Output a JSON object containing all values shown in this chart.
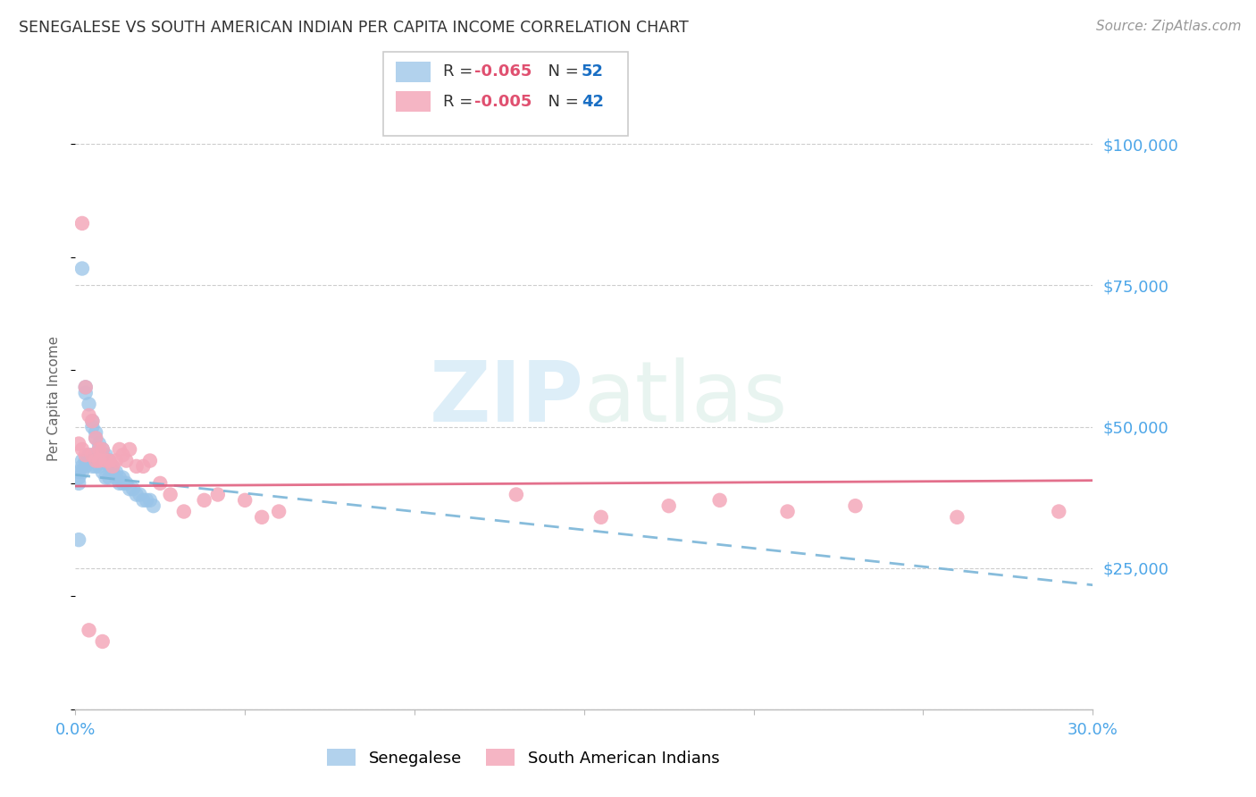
{
  "title": "SENEGALESE VS SOUTH AMERICAN INDIAN PER CAPITA INCOME CORRELATION CHART",
  "source": "Source: ZipAtlas.com",
  "ylabel": "Per Capita Income",
  "xlim": [
    0.0,
    0.3
  ],
  "ylim": [
    0,
    110000
  ],
  "yticks": [
    0,
    25000,
    50000,
    75000,
    100000
  ],
  "ytick_labels": [
    "",
    "$25,000",
    "$50,000",
    "$75,000",
    "$100,000"
  ],
  "xticks": [
    0.0,
    0.05,
    0.1,
    0.15,
    0.2,
    0.25,
    0.3
  ],
  "xtick_labels": [
    "0.0%",
    "",
    "",
    "",
    "",
    "",
    "30.0%"
  ],
  "background_color": "#ffffff",
  "grid_color": "#c8c8c8",
  "title_color": "#444444",
  "blue_color": "#99c4e8",
  "pink_color": "#f4a8ba",
  "trend_blue_color": "#7ab5d8",
  "trend_pink_color": "#e06080",
  "label_color": "#4da6e8",
  "watermark_color": "#ddeef8",
  "senegalese_x": [
    0.001,
    0.001,
    0.001,
    0.002,
    0.002,
    0.002,
    0.002,
    0.003,
    0.003,
    0.003,
    0.003,
    0.004,
    0.004,
    0.004,
    0.005,
    0.005,
    0.005,
    0.005,
    0.006,
    0.006,
    0.006,
    0.006,
    0.007,
    0.007,
    0.007,
    0.008,
    0.008,
    0.008,
    0.009,
    0.009,
    0.009,
    0.01,
    0.01,
    0.01,
    0.011,
    0.011,
    0.012,
    0.012,
    0.013,
    0.013,
    0.014,
    0.014,
    0.015,
    0.016,
    0.017,
    0.018,
    0.019,
    0.02,
    0.021,
    0.022,
    0.001,
    0.023
  ],
  "senegalese_y": [
    42000,
    41000,
    40000,
    78000,
    44000,
    43000,
    42000,
    57000,
    56000,
    44000,
    43000,
    54000,
    45000,
    44000,
    51000,
    50000,
    44000,
    43000,
    49000,
    48000,
    44000,
    43000,
    47000,
    46000,
    43000,
    46000,
    45000,
    42000,
    45000,
    44000,
    41000,
    44000,
    43000,
    41000,
    43000,
    42000,
    42000,
    41000,
    41000,
    40000,
    41000,
    40000,
    40000,
    39000,
    39000,
    38000,
    38000,
    37000,
    37000,
    37000,
    30000,
    36000
  ],
  "sa_indian_x": [
    0.001,
    0.002,
    0.003,
    0.003,
    0.004,
    0.005,
    0.005,
    0.006,
    0.006,
    0.007,
    0.007,
    0.008,
    0.009,
    0.01,
    0.011,
    0.012,
    0.013,
    0.014,
    0.015,
    0.016,
    0.018,
    0.02,
    0.022,
    0.025,
    0.028,
    0.032,
    0.038,
    0.042,
    0.05,
    0.055,
    0.06,
    0.13,
    0.155,
    0.175,
    0.19,
    0.21,
    0.23,
    0.26,
    0.29,
    0.002,
    0.004,
    0.008
  ],
  "sa_indian_y": [
    47000,
    46000,
    57000,
    45000,
    52000,
    51000,
    45000,
    48000,
    44000,
    46000,
    44000,
    46000,
    44000,
    44000,
    43000,
    44000,
    46000,
    45000,
    44000,
    46000,
    43000,
    43000,
    44000,
    40000,
    38000,
    35000,
    37000,
    38000,
    37000,
    34000,
    35000,
    38000,
    34000,
    36000,
    37000,
    35000,
    36000,
    34000,
    35000,
    86000,
    14000,
    12000
  ],
  "blue_trend_x0": 0.0,
  "blue_trend_y0": 41500,
  "blue_trend_x1": 0.3,
  "blue_trend_y1": 22000,
  "pink_trend_x0": 0.0,
  "pink_trend_y0": 39500,
  "pink_trend_x1": 0.3,
  "pink_trend_y1": 40500
}
